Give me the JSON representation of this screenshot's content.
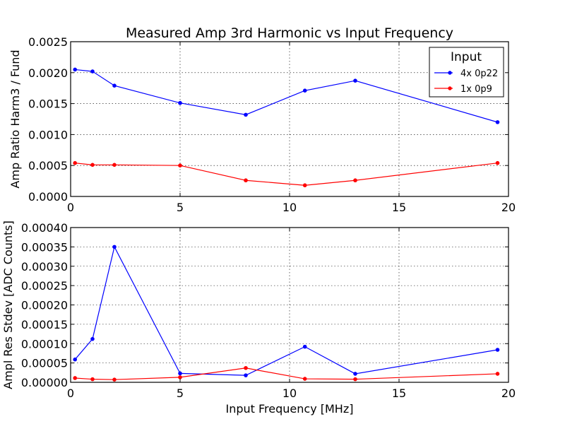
{
  "chart_data": [
    {
      "type": "line",
      "title": "Measured Amp 3rd Harmonic vs Input Frequency",
      "xlabel": "",
      "ylabel": "Amp Ratio Harm3 / Fund",
      "xlim": [
        0,
        20
      ],
      "ylim": [
        0,
        0.0025
      ],
      "xticks": [
        0,
        5,
        10,
        15,
        20
      ],
      "xtick_labels": [
        "0",
        "5",
        "10",
        "15",
        "20"
      ],
      "yticks": [
        0,
        0.0005,
        0.001,
        0.0015,
        0.002,
        0.0025
      ],
      "ytick_labels": [
        "0.0000",
        "0.0005",
        "0.0010",
        "0.0015",
        "0.0020",
        "0.0025"
      ],
      "grid": true,
      "legend": {
        "title": "Input",
        "location": "top-right"
      },
      "series": [
        {
          "name": "4x 0p22",
          "color": "#0000ff",
          "x": [
            0.2,
            1.0,
            2.0,
            5.0,
            8.0,
            10.7,
            13.0,
            19.5
          ],
          "y": [
            0.00205,
            0.00202,
            0.00179,
            0.00151,
            0.00132,
            0.00171,
            0.00187,
            0.0012
          ]
        },
        {
          "name": "1x 0p9",
          "color": "#ff0000",
          "x": [
            0.2,
            1.0,
            2.0,
            5.0,
            8.0,
            10.7,
            13.0,
            19.5
          ],
          "y": [
            0.00054,
            0.00051,
            0.00051,
            0.0005,
            0.00026,
            0.00018,
            0.00026,
            0.00054
          ]
        }
      ]
    },
    {
      "type": "line",
      "title": "",
      "xlabel": "Input Frequency [MHz]",
      "ylabel": "Ampl Res Stdev [ADC Counts]",
      "xlim": [
        0,
        20
      ],
      "ylim": [
        0,
        0.0004
      ],
      "xticks": [
        0,
        5,
        10,
        15,
        20
      ],
      "xtick_labels": [
        "0",
        "5",
        "10",
        "15",
        "20"
      ],
      "yticks": [
        0,
        5e-05,
        0.0001,
        0.00015,
        0.0002,
        0.00025,
        0.0003,
        0.00035,
        0.0004
      ],
      "ytick_labels": [
        "0.00000",
        "0.00005",
        "0.00010",
        "0.00015",
        "0.00020",
        "0.00025",
        "0.00030",
        "0.00035",
        "0.00040"
      ],
      "grid": true,
      "series": [
        {
          "name": "4x 0p22",
          "color": "#0000ff",
          "x": [
            0.2,
            1.0,
            2.0,
            5.0,
            8.0,
            10.7,
            13.0,
            19.5
          ],
          "y": [
            5.9e-05,
            0.000112,
            0.00035,
            2.3e-05,
            1.8e-05,
            9.2e-05,
            2.2e-05,
            8.4e-05
          ]
        },
        {
          "name": "1x 0p9",
          "color": "#ff0000",
          "x": [
            0.2,
            1.0,
            2.0,
            5.0,
            8.0,
            10.7,
            13.0,
            19.5
          ],
          "y": [
            1.1e-05,
            8e-06,
            7e-06,
            1.3e-05,
            3.7e-05,
            9e-06,
            8e-06,
            2.2e-05
          ]
        }
      ]
    }
  ]
}
